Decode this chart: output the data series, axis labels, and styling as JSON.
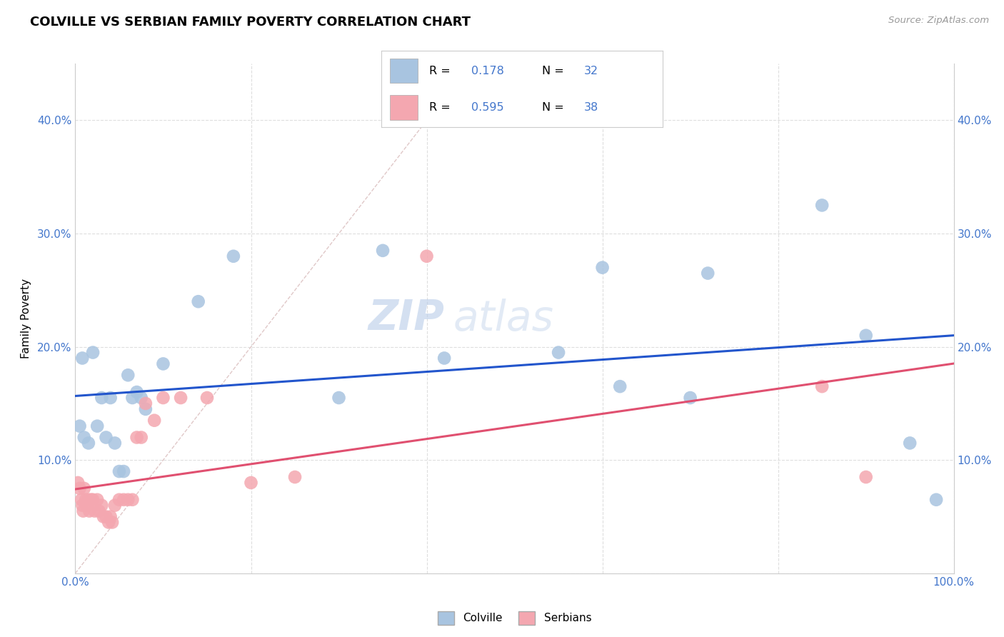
{
  "title": "COLVILLE VS SERBIAN FAMILY POVERTY CORRELATION CHART",
  "source": "Source: ZipAtlas.com",
  "ylabel": "Family Poverty",
  "xlim": [
    0,
    1.0
  ],
  "ylim": [
    0,
    0.45
  ],
  "colville_x": [
    0.008,
    0.02,
    0.025,
    0.03,
    0.04,
    0.05,
    0.055,
    0.06,
    0.07,
    0.08,
    0.1,
    0.14,
    0.18,
    0.35,
    0.55,
    0.62,
    0.72,
    0.85,
    0.9,
    0.95,
    0.005,
    0.01,
    0.015,
    0.035,
    0.045,
    0.065,
    0.075,
    0.42,
    0.6,
    0.7,
    0.3,
    0.98
  ],
  "colville_y": [
    0.19,
    0.195,
    0.13,
    0.155,
    0.155,
    0.09,
    0.09,
    0.175,
    0.16,
    0.145,
    0.185,
    0.24,
    0.28,
    0.285,
    0.195,
    0.165,
    0.265,
    0.325,
    0.21,
    0.115,
    0.13,
    0.12,
    0.115,
    0.12,
    0.115,
    0.155,
    0.155,
    0.19,
    0.27,
    0.155,
    0.155,
    0.065
  ],
  "serbian_x": [
    0.003,
    0.005,
    0.007,
    0.008,
    0.009,
    0.01,
    0.012,
    0.013,
    0.015,
    0.016,
    0.018,
    0.02,
    0.022,
    0.025,
    0.027,
    0.03,
    0.032,
    0.035,
    0.038,
    0.04,
    0.042,
    0.045,
    0.05,
    0.055,
    0.06,
    0.065,
    0.07,
    0.075,
    0.08,
    0.09,
    0.1,
    0.12,
    0.15,
    0.2,
    0.25,
    0.4,
    0.85,
    0.9
  ],
  "serbian_y": [
    0.08,
    0.075,
    0.065,
    0.06,
    0.055,
    0.075,
    0.065,
    0.06,
    0.065,
    0.055,
    0.065,
    0.065,
    0.055,
    0.065,
    0.055,
    0.06,
    0.05,
    0.05,
    0.045,
    0.05,
    0.045,
    0.06,
    0.065,
    0.065,
    0.065,
    0.065,
    0.12,
    0.12,
    0.15,
    0.135,
    0.155,
    0.155,
    0.155,
    0.08,
    0.085,
    0.28,
    0.165,
    0.085
  ],
  "colville_color": "#a8c4e0",
  "serbian_color": "#f4a7b0",
  "colville_line_color": "#2255cc",
  "serbian_line_color": "#e05070",
  "diagonal_color": "#cccccc",
  "R_colville": "0.178",
  "N_colville": "32",
  "R_serbian": "0.595",
  "N_serbian": "38",
  "watermark_zip": "ZIP",
  "watermark_atlas": "atlas",
  "background_color": "#ffffff",
  "grid_color": "#dedede",
  "accent_color": "#4477cc",
  "title_fontsize": 13,
  "tick_fontsize": 11
}
